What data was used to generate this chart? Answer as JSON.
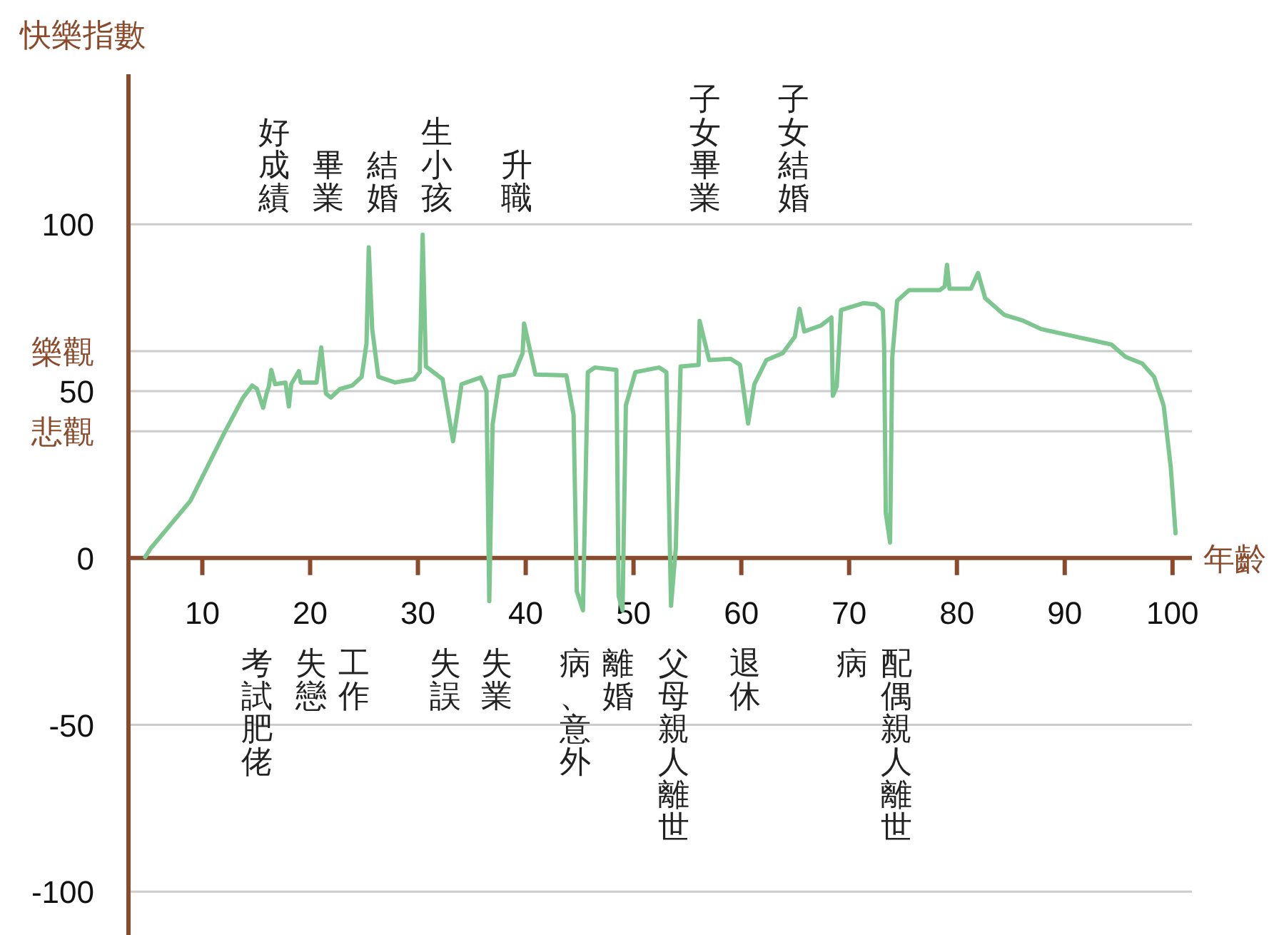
{
  "chart_data": {
    "type": "line",
    "ylabel": "快樂指數",
    "xlabel": "年齡",
    "xlim": [
      3.15,
      101.8
    ],
    "ylim": [
      -113,
      145
    ],
    "xticks": [
      10,
      20,
      30,
      40,
      50,
      60,
      70,
      80,
      90,
      100
    ],
    "yticks": [
      100,
      {
        "value": 62,
        "label": "樂觀"
      },
      50,
      {
        "value": 38,
        "label": "悲觀"
      },
      0,
      -50,
      -100
    ],
    "grid": "y",
    "marker": "none",
    "line_style": "solid",
    "series": [
      {
        "color": "#7dc68f",
        "x": [
          4.7,
          5.21,
          8.89,
          11.98,
          13.75,
          14.63,
          15.07,
          15.64,
          15.96,
          16.17,
          16.4,
          16.75,
          17.72,
          18.03,
          18.25,
          18.96,
          19.14,
          20.6,
          21.03,
          21.47,
          21.92,
          22.79,
          23.91,
          24.78,
          25.23,
          25.44,
          25.76,
          26.33,
          27.88,
          29.64,
          30.17,
          30.44,
          30.74,
          32.29,
          33.26,
          34.05,
          35.83,
          36.36,
          36.62,
          36.93,
          37.58,
          38.91,
          39.71,
          39.85,
          40.9,
          43.77,
          44.44,
          44.74,
          45.31,
          45.76,
          46.42,
          48.41,
          48.62,
          48.98,
          49.29,
          50.17,
          52.38,
          53.05,
          53.48,
          53.92,
          54.37,
          56.04,
          56.13,
          57.02,
          59.01,
          59.88,
          60.63,
          61.21,
          62.32,
          63.85,
          64.97,
          65.4,
          65.84,
          67.4,
          68.36,
          68.49,
          68.85,
          69.25,
          71.36,
          72.46,
          73.13,
          73.25,
          73.4,
          73.8,
          74.0,
          74.45,
          75.56,
          78.42,
          78.87,
          79.08,
          79.31,
          81.3,
          81.96,
          82.62,
          84.38,
          86.16,
          87.83,
          90.93,
          94.32,
          95.64,
          97.19,
          98.29,
          99.18,
          99.84,
          100.28
        ],
        "values": [
          0.3,
          2.9,
          17.1,
          37.1,
          47.9,
          51.7,
          50.7,
          45.0,
          49.3,
          51.4,
          56.4,
          52.1,
          52.6,
          45.4,
          52.1,
          56.0,
          52.6,
          52.6,
          63.1,
          49.3,
          48.1,
          50.7,
          51.7,
          54.3,
          64.3,
          93.1,
          68.6,
          54.3,
          52.6,
          53.6,
          55.7,
          96.9,
          57.4,
          53.6,
          35.0,
          52.1,
          54.1,
          50.0,
          -12.9,
          40.0,
          54.3,
          55.0,
          61.4,
          70.3,
          55.0,
          54.7,
          42.9,
          -10.0,
          -15.7,
          55.7,
          57.1,
          56.4,
          -11.4,
          -15.7,
          45.7,
          55.7,
          57.1,
          55.7,
          -14.3,
          2.9,
          57.4,
          57.9,
          71.1,
          59.3,
          59.7,
          57.9,
          40.3,
          52.1,
          59.3,
          61.4,
          66.4,
          74.7,
          67.9,
          69.7,
          72.1,
          48.6,
          51.4,
          74.3,
          76.4,
          76.0,
          74.3,
          62.9,
          13.6,
          4.6,
          60.0,
          77.1,
          80.3,
          80.3,
          81.4,
          87.9,
          80.7,
          80.7,
          85.4,
          77.9,
          72.9,
          71.1,
          68.6,
          66.4,
          64.0,
          60.3,
          58.3,
          54.3,
          45.7,
          27.1,
          7.4
        ]
      }
    ],
    "annotations": [
      "好成績",
      "畢業",
      "結婚",
      "生小孩",
      "升職",
      "子女畢業",
      "子女結婚",
      "考試肥佬",
      "失戀",
      "工作",
      "失誤",
      "失業",
      "病、意外",
      "離婚",
      "父母親人離世",
      "退休",
      "病",
      "配偶親人離世"
    ]
  }
}
